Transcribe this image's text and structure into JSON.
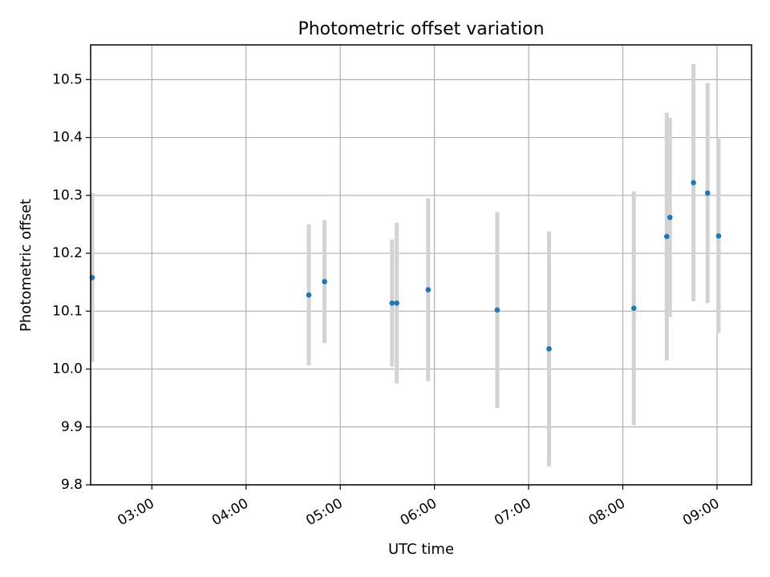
{
  "chart_data": {
    "type": "scatter",
    "title": "Photometric offset variation",
    "xlabel": "UTC time",
    "ylabel": "Photometric offset",
    "x_axis_type": "time",
    "xlim": [
      "02:21",
      "09:22"
    ],
    "ylim": [
      9.8,
      10.56
    ],
    "xticks": [
      "03:00",
      "04:00",
      "05:00",
      "06:00",
      "07:00",
      "08:00",
      "09:00"
    ],
    "yticks": [
      "9.8",
      "9.9",
      "10.0",
      "10.1",
      "10.2",
      "10.3",
      "10.4",
      "10.5"
    ],
    "grid": true,
    "points": [
      {
        "x": "02:22",
        "y": 10.158,
        "err": 0.146
      },
      {
        "x": "04:40",
        "y": 10.128,
        "err": 0.122
      },
      {
        "x": "04:50",
        "y": 10.151,
        "err": 0.106
      },
      {
        "x": "05:33",
        "y": 10.114,
        "err": 0.11
      },
      {
        "x": "05:36",
        "y": 10.114,
        "err": 0.139
      },
      {
        "x": "05:56",
        "y": 10.137,
        "err": 0.158
      },
      {
        "x": "06:40",
        "y": 10.102,
        "err": 0.169
      },
      {
        "x": "07:13",
        "y": 10.035,
        "err": 0.203
      },
      {
        "x": "08:07",
        "y": 10.105,
        "err": 0.202
      },
      {
        "x": "08:28",
        "y": 10.229,
        "err": 0.214
      },
      {
        "x": "08:30",
        "y": 10.262,
        "err": 0.172
      },
      {
        "x": "08:45",
        "y": 10.322,
        "err": 0.205
      },
      {
        "x": "08:54",
        "y": 10.304,
        "err": 0.19
      },
      {
        "x": "09:01",
        "y": 10.23,
        "err": 0.168
      }
    ],
    "colors": {
      "point": "#1f77b4",
      "errorbar": "#d3d3d3",
      "grid": "#b0b0b0",
      "axes": "#000000"
    }
  }
}
